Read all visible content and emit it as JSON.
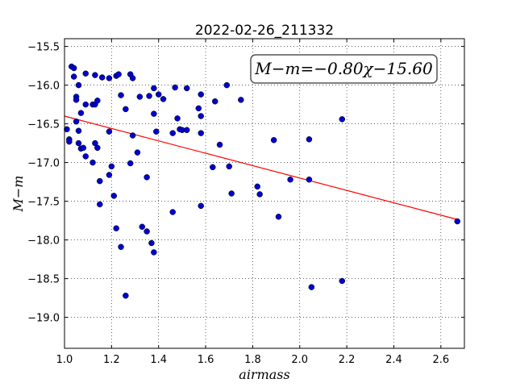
{
  "chart_data": {
    "type": "scatter",
    "title": "2022-02-26_211332",
    "xlabel": "airmass",
    "ylabel": "M−m",
    "xlim": [
      1.0,
      2.7
    ],
    "ylim": [
      -19.4,
      -15.4
    ],
    "y_inverted": true,
    "grid": true,
    "x_ticks": [
      1.0,
      1.2,
      1.4,
      1.6,
      1.8,
      2.0,
      2.2,
      2.4,
      2.6
    ],
    "x_tick_labels": [
      "1.0",
      "1.2",
      "1.4",
      "1.6",
      "1.8",
      "2.0",
      "2.2",
      "2.4",
      "2.6"
    ],
    "y_ticks": [
      -15.5,
      -16.0,
      -16.5,
      -17.0,
      -17.5,
      -18.0,
      -18.5,
      -19.0
    ],
    "y_tick_labels": [
      "−15.5",
      "−16.0",
      "−16.5",
      "−17.0",
      "−17.5",
      "−18.0",
      "−18.5",
      "−19.0"
    ],
    "annotation": "M−m=−0.80χ−15.60",
    "annotation_position": "top-right",
    "fit": {
      "slope": -0.8,
      "intercept": -15.6,
      "x_range": [
        1.0,
        2.67
      ]
    },
    "colors": {
      "points": "#0000cc",
      "fit_line": "#ff0000"
    },
    "points": [
      [
        1.01,
        -16.57
      ],
      [
        1.02,
        -16.7
      ],
      [
        1.02,
        -16.73
      ],
      [
        1.03,
        -15.76
      ],
      [
        1.04,
        -15.78
      ],
      [
        1.04,
        -15.89
      ],
      [
        1.05,
        -16.15
      ],
      [
        1.05,
        -16.19
      ],
      [
        1.05,
        -16.47
      ],
      [
        1.06,
        -16.59
      ],
      [
        1.06,
        -16.75
      ],
      [
        1.06,
        -16.0
      ],
      [
        1.07,
        -16.36
      ],
      [
        1.07,
        -16.82
      ],
      [
        1.08,
        -16.81
      ],
      [
        1.09,
        -15.85
      ],
      [
        1.09,
        -16.25
      ],
      [
        1.09,
        -16.92
      ],
      [
        1.12,
        -17.0
      ],
      [
        1.12,
        -16.25
      ],
      [
        1.13,
        -15.87
      ],
      [
        1.13,
        -16.25
      ],
      [
        1.13,
        -16.75
      ],
      [
        1.14,
        -16.2
      ],
      [
        1.14,
        -16.81
      ],
      [
        1.15,
        -17.24
      ],
      [
        1.15,
        -17.54
      ],
      [
        1.16,
        -15.9
      ],
      [
        1.19,
        -15.91
      ],
      [
        1.19,
        -16.6
      ],
      [
        1.19,
        -17.16
      ],
      [
        1.2,
        -17.05
      ],
      [
        1.21,
        -17.43
      ],
      [
        1.22,
        -15.88
      ],
      [
        1.22,
        -17.85
      ],
      [
        1.23,
        -15.86
      ],
      [
        1.24,
        -16.13
      ],
      [
        1.24,
        -18.09
      ],
      [
        1.26,
        -16.31
      ],
      [
        1.26,
        -18.72
      ],
      [
        1.28,
        -15.86
      ],
      [
        1.28,
        -17.01
      ],
      [
        1.29,
        -16.65
      ],
      [
        1.29,
        -15.91
      ],
      [
        1.31,
        -16.87
      ],
      [
        1.32,
        -16.15
      ],
      [
        1.33,
        -17.83
      ],
      [
        1.35,
        -17.19
      ],
      [
        1.35,
        -17.89
      ],
      [
        1.36,
        -16.14
      ],
      [
        1.37,
        -18.04
      ],
      [
        1.38,
        -16.04
      ],
      [
        1.38,
        -18.16
      ],
      [
        1.38,
        -16.37
      ],
      [
        1.39,
        -16.6
      ],
      [
        1.4,
        -16.12
      ],
      [
        1.42,
        -16.18
      ],
      [
        1.46,
        -17.64
      ],
      [
        1.46,
        -16.62
      ],
      [
        1.47,
        -16.03
      ],
      [
        1.48,
        -16.43
      ],
      [
        1.49,
        -16.57
      ],
      [
        1.5,
        -16.58
      ],
      [
        1.52,
        -16.04
      ],
      [
        1.52,
        -16.58
      ],
      [
        1.57,
        -16.3
      ],
      [
        1.58,
        -16.4
      ],
      [
        1.58,
        -16.62
      ],
      [
        1.58,
        -16.12
      ],
      [
        1.58,
        -17.56
      ],
      [
        1.63,
        -17.06
      ],
      [
        1.64,
        -16.21
      ],
      [
        1.66,
        -16.77
      ],
      [
        1.69,
        -16.0
      ],
      [
        1.7,
        -17.05
      ],
      [
        1.71,
        -17.4
      ],
      [
        1.75,
        -16.19
      ],
      [
        1.82,
        -17.31
      ],
      [
        1.83,
        -17.41
      ],
      [
        1.89,
        -16.71
      ],
      [
        1.91,
        -17.7
      ],
      [
        1.96,
        -17.22
      ],
      [
        2.04,
        -17.22
      ],
      [
        2.04,
        -16.7
      ],
      [
        2.05,
        -18.61
      ],
      [
        2.18,
        -18.53
      ],
      [
        2.18,
        -16.44
      ],
      [
        2.67,
        -17.76
      ]
    ]
  }
}
